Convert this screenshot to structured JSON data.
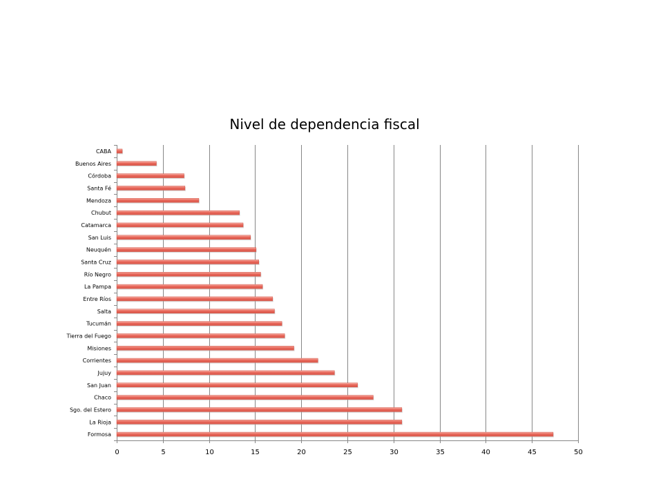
{
  "chart_data": {
    "type": "bar",
    "orientation": "horizontal",
    "title": "Nivel de dependencia fiscal",
    "xlabel": "",
    "ylabel": "",
    "categories": [
      "CABA",
      "Buenos Aires",
      "Córdoba",
      "Santa Fé",
      "Mendoza",
      "Chubut",
      "Catamarca",
      "San Luis",
      "Neuquén",
      "Santa Cruz",
      "Río Negro",
      "La Pampa",
      "Entre Ríos",
      "Salta",
      "Tucumán",
      "Tierra del Fuego",
      "Misiones",
      "Corrientes",
      "Jujuy",
      "San Juan",
      "Chaco",
      "Sgo. del Estero",
      "La Rioja",
      "Formosa"
    ],
    "values": [
      0.6,
      4.3,
      7.3,
      7.4,
      8.9,
      13.3,
      13.7,
      14.5,
      15.1,
      15.4,
      15.6,
      15.8,
      16.9,
      17.1,
      17.9,
      18.2,
      19.2,
      21.8,
      23.6,
      26.1,
      27.8,
      30.9,
      30.9,
      47.3
    ],
    "xlim": [
      0,
      50
    ],
    "xticks": [
      "0",
      "5",
      "10",
      "15",
      "20",
      "25",
      "30",
      "35",
      "40",
      "45",
      "50"
    ],
    "grid": true,
    "colors": {
      "bar": "#e8675a",
      "bar_light": "#f4a79c",
      "grid": "#868686",
      "axis": "#868686"
    }
  }
}
